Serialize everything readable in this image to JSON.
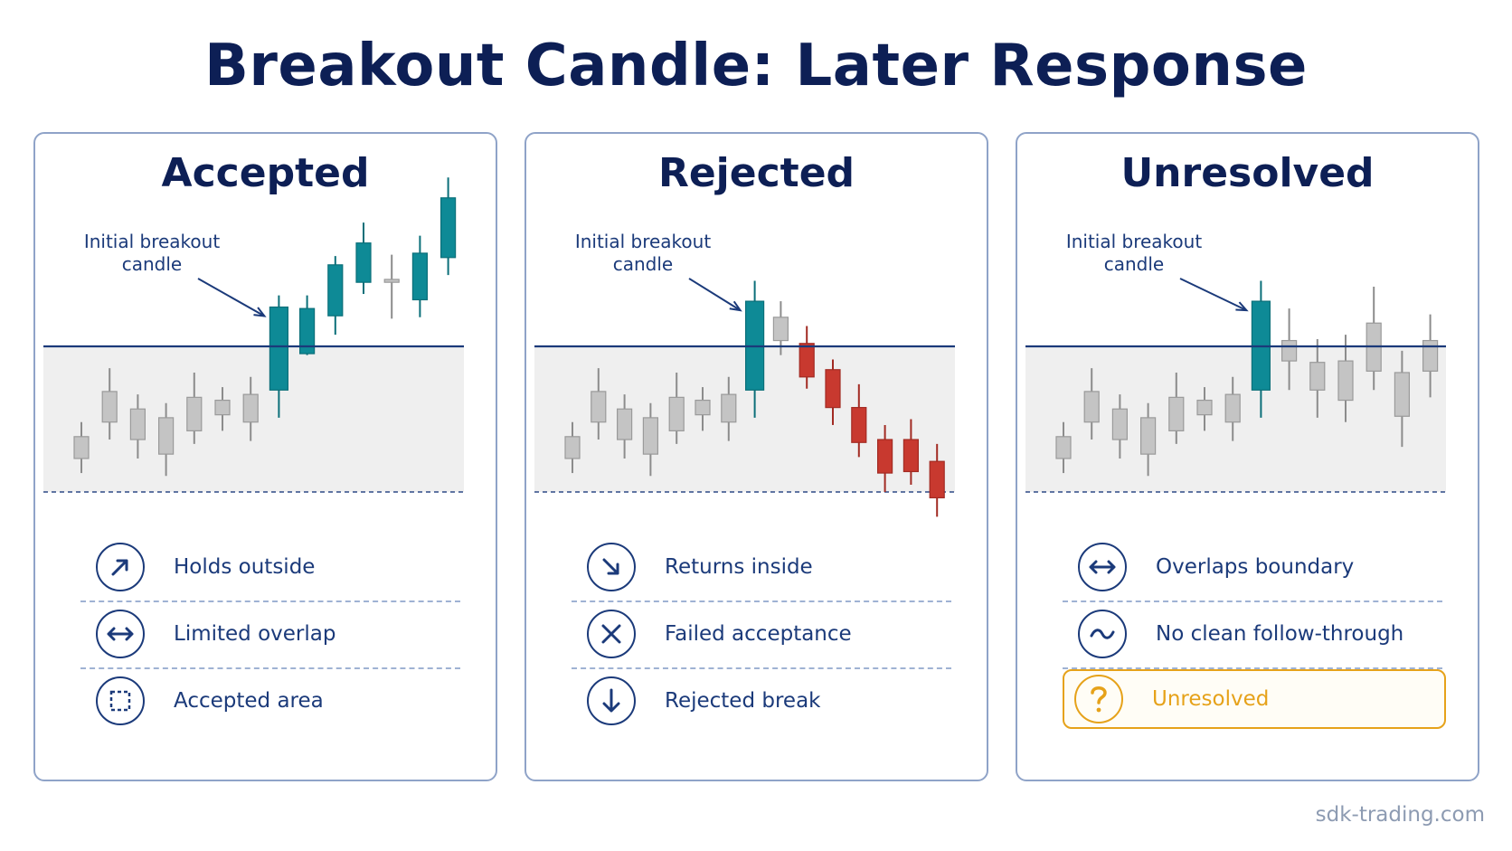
{
  "title": "Breakout Candle: Later Response",
  "watermark": "sdk-trading.com",
  "colors": {
    "navy": "#0d1f55",
    "teal": "#0e8a96",
    "red": "#c8392f",
    "gray_candle": "#c4c4c4",
    "zone": "#efefef",
    "amber": "#e6a21a"
  },
  "annotation": {
    "line1": "Initial breakout",
    "line2": "candle"
  },
  "panels": [
    {
      "title": "Accepted",
      "items": [
        {
          "label": "Holds outside",
          "icon": "arrow-up-right-icon"
        },
        {
          "label": "Limited overlap",
          "icon": "double-arrow-horizontal-icon"
        },
        {
          "label": "Accepted area",
          "icon": "dashed-square-icon"
        }
      ]
    },
    {
      "title": "Rejected",
      "items": [
        {
          "label": "Returns inside",
          "icon": "arrow-down-right-icon"
        },
        {
          "label": "Failed acceptance",
          "icon": "x-icon"
        },
        {
          "label": "Rejected break",
          "icon": "arrow-down-icon"
        }
      ]
    },
    {
      "title": "Unresolved",
      "items": [
        {
          "label": "Overlaps boundary",
          "icon": "double-arrow-horizontal-icon"
        },
        {
          "label": "No clean follow-through",
          "icon": "tilde-icon"
        },
        {
          "label": "Unresolved",
          "icon": "question-mark-icon",
          "highlight": true
        }
      ]
    }
  ],
  "chart_data": [
    {
      "type": "candlestick",
      "title": "Accepted",
      "boundary_level": 0,
      "range_low": -1,
      "candles": [
        {
          "o": -0.62,
          "c": -0.77,
          "h": -0.52,
          "l": -0.87,
          "color": "gray"
        },
        {
          "o": -0.52,
          "c": -0.31,
          "h": -0.15,
          "l": -0.64,
          "color": "gray"
        },
        {
          "o": -0.43,
          "c": -0.64,
          "h": -0.33,
          "l": -0.77,
          "color": "gray"
        },
        {
          "o": -0.49,
          "c": -0.74,
          "h": -0.39,
          "l": -0.89,
          "color": "gray"
        },
        {
          "o": -0.35,
          "c": -0.58,
          "h": -0.18,
          "l": -0.67,
          "color": "gray"
        },
        {
          "o": -0.37,
          "c": -0.47,
          "h": -0.28,
          "l": -0.58,
          "color": "gray"
        },
        {
          "o": -0.33,
          "c": -0.52,
          "h": -0.21,
          "l": -0.65,
          "color": "gray"
        },
        {
          "o": -0.3,
          "c": 0.27,
          "h": 0.35,
          "l": -0.49,
          "color": "teal",
          "breakout": true
        },
        {
          "o": -0.05,
          "c": 0.26,
          "h": 0.35,
          "l": -0.06,
          "color": "teal"
        },
        {
          "o": 0.21,
          "c": 0.56,
          "h": 0.62,
          "l": 0.08,
          "color": "teal"
        },
        {
          "o": 0.44,
          "c": 0.71,
          "h": 0.85,
          "l": 0.36,
          "color": "teal"
        },
        {
          "o": 0.46,
          "c": 0.44,
          "h": 0.63,
          "l": 0.19,
          "color": "gray"
        },
        {
          "o": 0.32,
          "c": 0.64,
          "h": 0.76,
          "l": 0.2,
          "color": "teal"
        },
        {
          "o": 0.61,
          "c": 1.02,
          "h": 1.16,
          "l": 0.49,
          "color": "teal"
        }
      ]
    },
    {
      "type": "candlestick",
      "title": "Rejected",
      "boundary_level": 0,
      "range_low": -1,
      "candles": [
        {
          "o": -0.62,
          "c": -0.77,
          "h": -0.52,
          "l": -0.87,
          "color": "gray"
        },
        {
          "o": -0.52,
          "c": -0.31,
          "h": -0.15,
          "l": -0.64,
          "color": "gray"
        },
        {
          "o": -0.43,
          "c": -0.64,
          "h": -0.33,
          "l": -0.77,
          "color": "gray"
        },
        {
          "o": -0.49,
          "c": -0.74,
          "h": -0.39,
          "l": -0.89,
          "color": "gray"
        },
        {
          "o": -0.35,
          "c": -0.58,
          "h": -0.18,
          "l": -0.67,
          "color": "gray"
        },
        {
          "o": -0.37,
          "c": -0.47,
          "h": -0.28,
          "l": -0.58,
          "color": "gray"
        },
        {
          "o": -0.33,
          "c": -0.52,
          "h": -0.21,
          "l": -0.65,
          "color": "gray"
        },
        {
          "o": -0.3,
          "c": 0.31,
          "h": 0.45,
          "l": -0.49,
          "color": "teal",
          "breakout": true
        },
        {
          "o": 0.2,
          "c": 0.04,
          "h": 0.31,
          "l": -0.06,
          "color": "gray"
        },
        {
          "o": 0.02,
          "c": -0.21,
          "h": 0.14,
          "l": -0.29,
          "color": "red"
        },
        {
          "o": -0.16,
          "c": -0.42,
          "h": -0.09,
          "l": -0.54,
          "color": "red"
        },
        {
          "o": -0.42,
          "c": -0.66,
          "h": -0.26,
          "l": -0.76,
          "color": "red"
        },
        {
          "o": -0.64,
          "c": -0.87,
          "h": -0.54,
          "l": -1.0,
          "color": "red"
        },
        {
          "o": -0.64,
          "c": -0.86,
          "h": -0.5,
          "l": -0.95,
          "color": "red"
        },
        {
          "o": -0.79,
          "c": -1.04,
          "h": -0.67,
          "l": -1.17,
          "color": "red"
        }
      ]
    },
    {
      "type": "candlestick",
      "title": "Unresolved",
      "boundary_level": 0,
      "range_low": -1,
      "candles": [
        {
          "o": -0.62,
          "c": -0.77,
          "h": -0.52,
          "l": -0.87,
          "color": "gray"
        },
        {
          "o": -0.52,
          "c": -0.31,
          "h": -0.15,
          "l": -0.64,
          "color": "gray"
        },
        {
          "o": -0.43,
          "c": -0.64,
          "h": -0.33,
          "l": -0.77,
          "color": "gray"
        },
        {
          "o": -0.49,
          "c": -0.74,
          "h": -0.39,
          "l": -0.89,
          "color": "gray"
        },
        {
          "o": -0.35,
          "c": -0.58,
          "h": -0.18,
          "l": -0.67,
          "color": "gray"
        },
        {
          "o": -0.37,
          "c": -0.47,
          "h": -0.28,
          "l": -0.58,
          "color": "gray"
        },
        {
          "o": -0.33,
          "c": -0.52,
          "h": -0.21,
          "l": -0.65,
          "color": "gray"
        },
        {
          "o": -0.3,
          "c": 0.31,
          "h": 0.45,
          "l": -0.49,
          "color": "teal",
          "breakout": true
        },
        {
          "o": 0.04,
          "c": -0.1,
          "h": 0.26,
          "l": -0.3,
          "color": "gray"
        },
        {
          "o": -0.11,
          "c": -0.3,
          "h": 0.05,
          "l": -0.49,
          "color": "gray"
        },
        {
          "o": -0.1,
          "c": -0.37,
          "h": 0.08,
          "l": -0.52,
          "color": "gray"
        },
        {
          "o": 0.16,
          "c": -0.17,
          "h": 0.41,
          "l": -0.3,
          "color": "gray"
        },
        {
          "o": -0.18,
          "c": -0.48,
          "h": -0.03,
          "l": -0.69,
          "color": "gray"
        },
        {
          "o": 0.04,
          "c": -0.17,
          "h": 0.22,
          "l": -0.35,
          "color": "gray"
        }
      ]
    }
  ]
}
